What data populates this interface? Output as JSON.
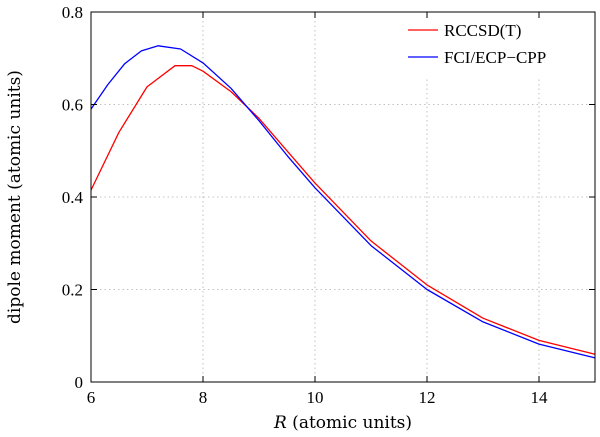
{
  "chart_data": {
    "type": "line",
    "xlabel_italic": "R",
    "xlabel_rest": " (atomic units)",
    "ylabel": "dipole moment (atomic units)",
    "xlim": [
      6,
      15
    ],
    "ylim": [
      0,
      0.8
    ],
    "xticks": [
      6,
      8,
      10,
      12,
      14
    ],
    "yticks": [
      0,
      0.2,
      0.4,
      0.6,
      0.8
    ],
    "ytick_labels": [
      "0",
      "0.2",
      "0.4",
      "0.6",
      "0.8"
    ],
    "grid": true,
    "legend_position": "top-right",
    "series": [
      {
        "name": "RCCSD(T)",
        "color": "#ff0000",
        "x": [
          6.0,
          6.5,
          7.0,
          7.5,
          7.8,
          8.0,
          8.5,
          9.0,
          9.5,
          10.0,
          11.0,
          12.0,
          13.0,
          14.0,
          15.0
        ],
        "y": [
          0.415,
          0.54,
          0.638,
          0.684,
          0.684,
          0.672,
          0.628,
          0.57,
          0.5,
          0.43,
          0.305,
          0.21,
          0.138,
          0.09,
          0.06
        ]
      },
      {
        "name": "FCI/ECP−CPP",
        "color": "#0000ff",
        "x": [
          6.0,
          6.3,
          6.6,
          6.9,
          7.2,
          7.6,
          8.0,
          8.5,
          9.0,
          9.5,
          10.0,
          11.0,
          12.0,
          13.0,
          14.0,
          15.0
        ],
        "y": [
          0.59,
          0.643,
          0.688,
          0.716,
          0.727,
          0.72,
          0.69,
          0.635,
          0.565,
          0.49,
          0.42,
          0.295,
          0.2,
          0.13,
          0.082,
          0.052
        ]
      }
    ]
  }
}
